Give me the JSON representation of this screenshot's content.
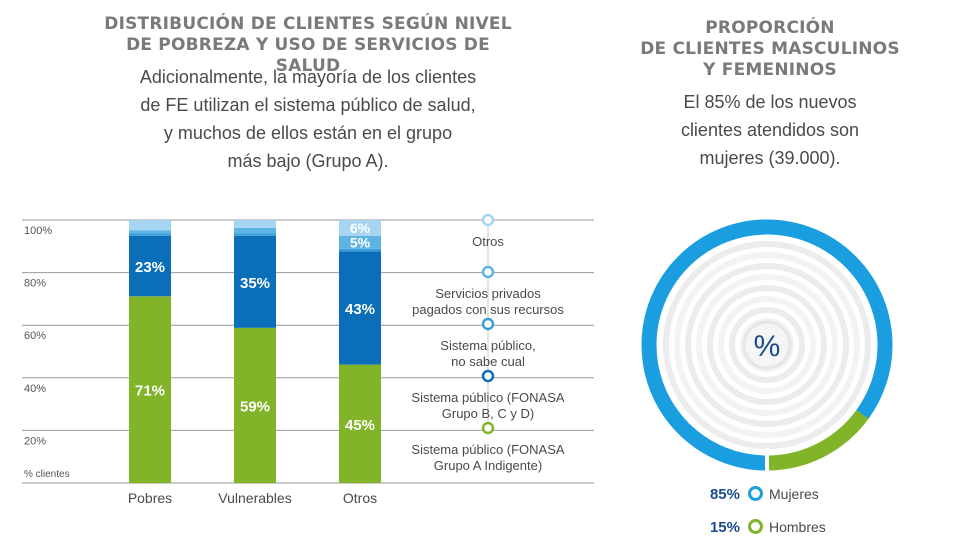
{
  "left": {
    "title_line1": "DISTRIBUCIÓN DE CLIENTES SEGÚN NIVEL",
    "title_line2": "DE POBREZA Y USO DE SERVICIOS DE SALUD",
    "desc_line1": "Adicionalmente, la mayoría de los clientes",
    "desc_line2": "de FE utilizan el sistema público de salud,",
    "desc_line3": "y muchos de ellos están en el grupo",
    "desc_line4": "más bajo (Grupo A)."
  },
  "right": {
    "title_line1": "PROPORCIÓN",
    "title_line2": "DE CLIENTES MASCULINOS",
    "title_line3": "Y FEMENINOS",
    "desc_line1": "El 85% de los nuevos",
    "desc_line2": "clientes atendidos son",
    "desc_line3": "mujeres (39.000)."
  },
  "chart_data": [
    {
      "type": "bar",
      "stacked": true,
      "categories": [
        "Pobres",
        "Vulnerables",
        "Otros"
      ],
      "y_ticks": [
        "100%",
        "80%",
        "60%",
        "40%",
        "20%"
      ],
      "y_unit_label": "% clientes",
      "series": [
        {
          "name": "Sistema público (FONASA Grupo A Indigente)",
          "label_lines": [
            "Sistema público (FONASA",
            "Grupo A Indigente)"
          ],
          "color": "#82b42a",
          "values": [
            71,
            59,
            45
          ],
          "labels": [
            "71%",
            "59%",
            "45%"
          ]
        },
        {
          "name": "Sistema público (FONASA Grupo B, C y D)",
          "label_lines": [
            "Sistema público (FONASA",
            "Grupo B, C y D)"
          ],
          "color": "#0a6fb8",
          "values": [
            23,
            35,
            43
          ],
          "labels": [
            "23%",
            "35%",
            "43%"
          ]
        },
        {
          "name": "Sistema público, no sabe cual",
          "label_lines": [
            "Sistema público,",
            "no sabe cual"
          ],
          "color": "#3a9ed6",
          "values": [
            1,
            1,
            1
          ],
          "labels": [
            "",
            "",
            ""
          ]
        },
        {
          "name": "Servicios privados pagados con sus recursos",
          "label_lines": [
            "Servicios privados",
            "pagados con sus recursos"
          ],
          "color": "#5db4e4",
          "values": [
            1,
            2,
            5
          ],
          "labels": [
            "",
            "",
            "5%"
          ]
        },
        {
          "name": "Otros",
          "label_lines": [
            "Otros"
          ],
          "color": "#a6d5f1",
          "values": [
            4,
            3,
            6
          ],
          "labels": [
            "",
            "",
            "6%"
          ]
        }
      ]
    },
    {
      "type": "pie",
      "categories": [
        "Mujeres",
        "Hombres"
      ],
      "values": [
        85,
        15
      ],
      "labels": [
        "85%",
        "15%"
      ],
      "colors": [
        "#1a9ee0",
        "#82b42a"
      ],
      "center_label": "%"
    }
  ]
}
